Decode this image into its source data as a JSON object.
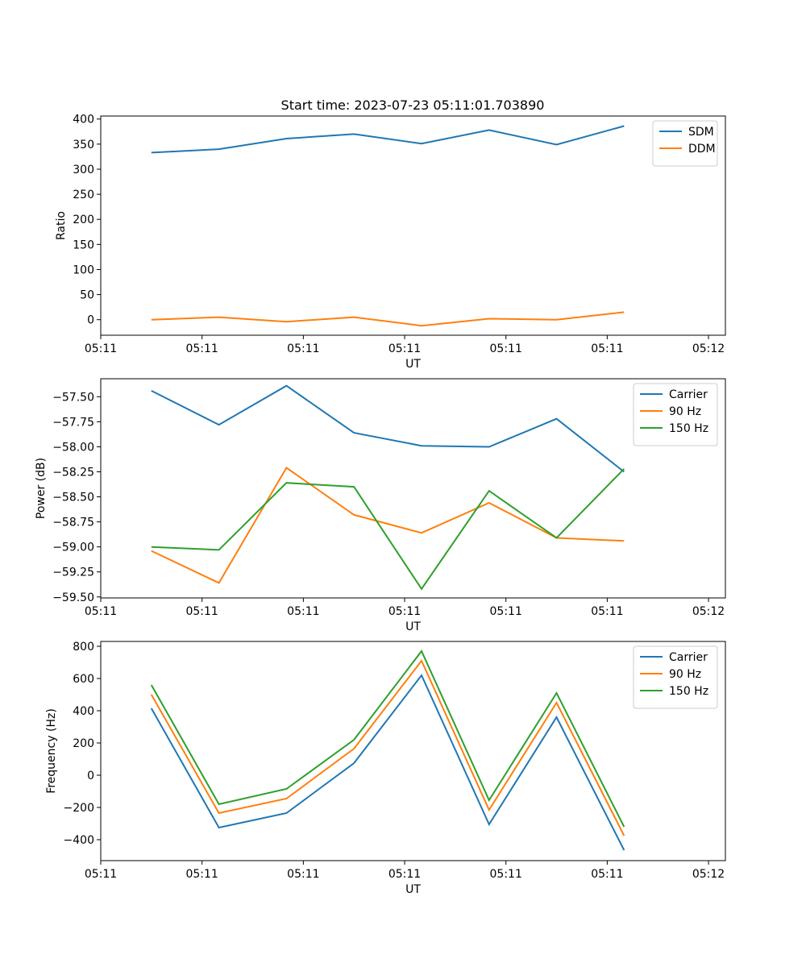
{
  "figure": {
    "title": "Start time: 2023-07-23 05:11:01.703890"
  },
  "colors": {
    "blue": "#1f77b4",
    "orange": "#ff7f0e",
    "green": "#2ca02c"
  },
  "chart_data": [
    {
      "type": "line",
      "title": "Start time: 2023-07-23 05:11:01.703890",
      "xlabel": "UT",
      "ylabel": "Ratio",
      "x": [
        0,
        1,
        2,
        3,
        4,
        5,
        6,
        7
      ],
      "xlim": [
        -0.75,
        8.5
      ],
      "xticks": [
        -0.75,
        0.75,
        2.25,
        3.75,
        5.25,
        6.75,
        8.25
      ],
      "xtick_labels": [
        "05:11",
        "05:11",
        "05:11",
        "05:11",
        "05:11",
        "05:11",
        "05:12"
      ],
      "ylim": [
        -31,
        406
      ],
      "yticks": [
        0,
        50,
        100,
        150,
        200,
        250,
        300,
        350,
        400
      ],
      "ytick_labels": [
        "0",
        "50",
        "100",
        "150",
        "200",
        "250",
        "300",
        "350",
        "400"
      ],
      "legend": "top-right",
      "series": [
        {
          "name": "SDM",
          "color": "#1f77b4",
          "values": [
            333,
            340,
            361,
            370,
            351,
            378,
            349,
            386
          ]
        },
        {
          "name": "DDM",
          "color": "#ff7f0e",
          "values": [
            0,
            5,
            -4,
            5,
            -12,
            2,
            0,
            15
          ]
        }
      ]
    },
    {
      "type": "line",
      "title": "",
      "xlabel": "UT",
      "ylabel": "Power (dB)",
      "x": [
        0,
        1,
        2,
        3,
        4,
        5,
        6,
        7
      ],
      "xlim": [
        -0.75,
        8.5
      ],
      "xticks": [
        -0.75,
        0.75,
        2.25,
        3.75,
        5.25,
        6.75,
        8.25
      ],
      "xtick_labels": [
        "05:11",
        "05:11",
        "05:11",
        "05:11",
        "05:11",
        "05:11",
        "05:12"
      ],
      "ylim": [
        -59.51,
        -57.32
      ],
      "yticks": [
        -57.5,
        -57.75,
        -58.0,
        -58.25,
        -58.5,
        -58.75,
        -59.0,
        -59.25,
        -59.5
      ],
      "ytick_labels": [
        "−57.50",
        "−57.75",
        "−58.00",
        "−58.25",
        "−58.50",
        "−58.75",
        "−59.00",
        "−59.25",
        "−59.50"
      ],
      "legend": "top-right",
      "series": [
        {
          "name": "Carrier",
          "color": "#1f77b4",
          "values": [
            -57.44,
            -57.78,
            -57.39,
            -57.86,
            -57.99,
            -58.0,
            -57.72,
            -58.25
          ]
        },
        {
          "name": "90 Hz",
          "color": "#ff7f0e",
          "values": [
            -59.04,
            -59.36,
            -58.21,
            -58.68,
            -58.86,
            -58.56,
            -58.91,
            -58.94
          ]
        },
        {
          "name": "150 Hz",
          "color": "#2ca02c",
          "values": [
            -59.0,
            -59.03,
            -58.36,
            -58.4,
            -59.42,
            -58.44,
            -58.91,
            -58.22
          ]
        }
      ]
    },
    {
      "type": "line",
      "title": "",
      "xlabel": "UT",
      "ylabel": "Frequency (Hz)",
      "x": [
        0,
        1,
        2,
        3,
        4,
        5,
        6,
        7
      ],
      "xlim": [
        -0.75,
        8.5
      ],
      "xticks": [
        -0.75,
        0.75,
        2.25,
        3.75,
        5.25,
        6.75,
        8.25
      ],
      "xtick_labels": [
        "05:11",
        "05:11",
        "05:11",
        "05:11",
        "05:11",
        "05:11",
        "05:12"
      ],
      "ylim": [
        -530,
        830
      ],
      "yticks": [
        800,
        600,
        400,
        200,
        0,
        -200,
        -400
      ],
      "ytick_labels": [
        "800",
        "600",
        "400",
        "200",
        "0",
        "−200",
        "−400"
      ],
      "legend": "top-right",
      "series": [
        {
          "name": "Carrier",
          "color": "#1f77b4",
          "values": [
            415,
            -325,
            -235,
            75,
            620,
            -305,
            360,
            -465
          ]
        },
        {
          "name": "90 Hz",
          "color": "#ff7f0e",
          "values": [
            500,
            -235,
            -145,
            165,
            710,
            -215,
            450,
            -375
          ]
        },
        {
          "name": "150 Hz",
          "color": "#2ca02c",
          "values": [
            560,
            -180,
            -85,
            220,
            770,
            -155,
            510,
            -320
          ]
        }
      ]
    }
  ]
}
